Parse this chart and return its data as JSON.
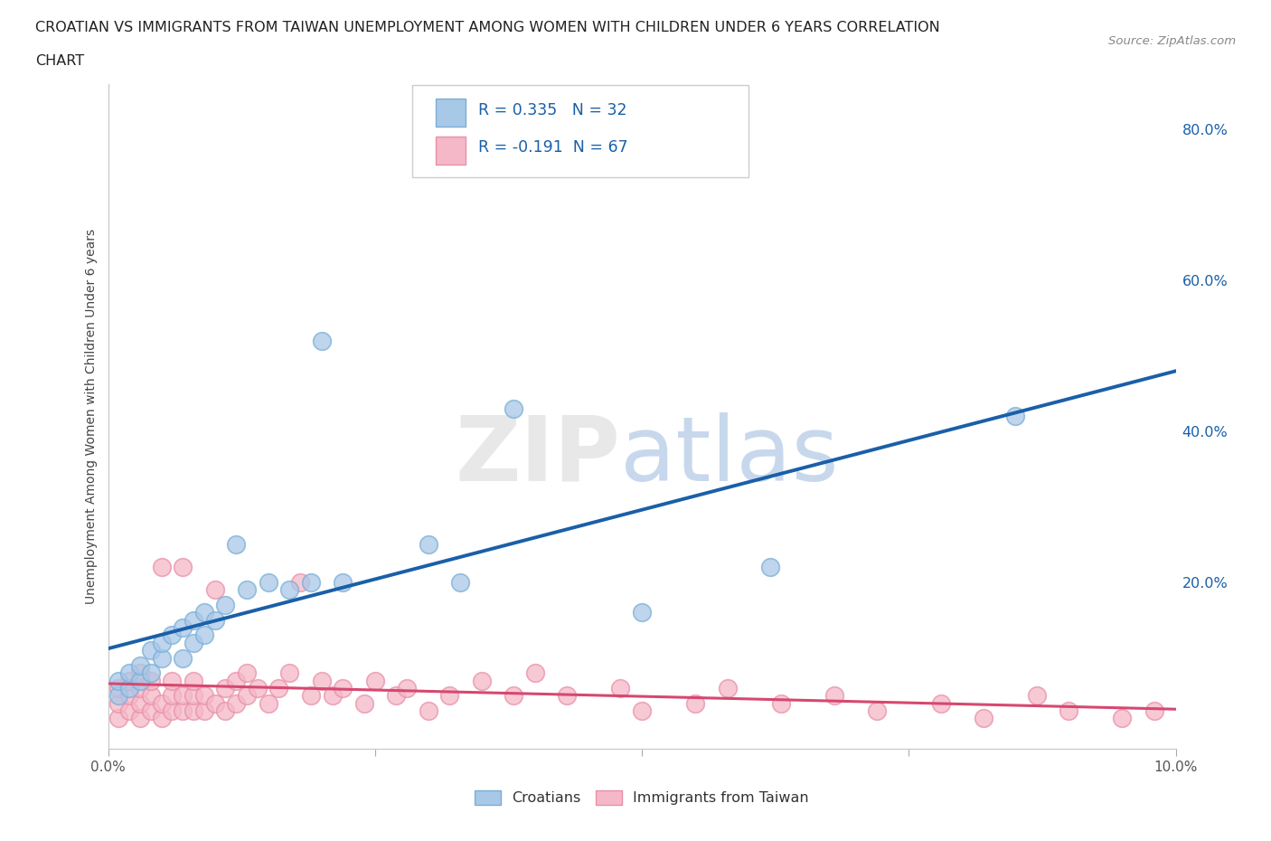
{
  "title_line1": "CROATIAN VS IMMIGRANTS FROM TAIWAN UNEMPLOYMENT AMONG WOMEN WITH CHILDREN UNDER 6 YEARS CORRELATION",
  "title_line2": "CHART",
  "source": "Source: ZipAtlas.com",
  "ylabel": "Unemployment Among Women with Children Under 6 years",
  "xlim": [
    0.0,
    0.1
  ],
  "ylim": [
    -0.02,
    0.86
  ],
  "yticks": [
    0.0,
    0.2,
    0.4,
    0.6,
    0.8
  ],
  "ytick_labels": [
    "",
    "20.0%",
    "40.0%",
    "60.0%",
    "80.0%"
  ],
  "xticks": [
    0.0,
    0.025,
    0.05,
    0.075,
    0.1
  ],
  "xtick_labels": [
    "0.0%",
    "",
    "",
    "",
    "10.0%"
  ],
  "croatian_R": 0.335,
  "croatian_N": 32,
  "taiwan_R": -0.191,
  "taiwan_N": 67,
  "croatian_color": "#a8c8e8",
  "croatian_edge_color": "#7aaed6",
  "croatian_line_color": "#1a5fa8",
  "taiwan_color": "#f5b8c8",
  "taiwan_edge_color": "#e890a8",
  "taiwan_line_color": "#d64870",
  "background_color": "#ffffff",
  "grid_color": "#d8d8d8",
  "croatian_x": [
    0.001,
    0.001,
    0.002,
    0.002,
    0.003,
    0.003,
    0.004,
    0.004,
    0.005,
    0.005,
    0.006,
    0.007,
    0.007,
    0.008,
    0.008,
    0.009,
    0.009,
    0.01,
    0.011,
    0.012,
    0.013,
    0.015,
    0.017,
    0.019,
    0.02,
    0.022,
    0.03,
    0.033,
    0.038,
    0.05,
    0.062,
    0.085
  ],
  "croatian_y": [
    0.05,
    0.07,
    0.06,
    0.08,
    0.07,
    0.09,
    0.08,
    0.11,
    0.1,
    0.12,
    0.13,
    0.1,
    0.14,
    0.12,
    0.15,
    0.13,
    0.16,
    0.15,
    0.17,
    0.25,
    0.19,
    0.2,
    0.19,
    0.2,
    0.52,
    0.2,
    0.25,
    0.2,
    0.43,
    0.16,
    0.22,
    0.42
  ],
  "taiwan_x": [
    0.001,
    0.001,
    0.001,
    0.002,
    0.002,
    0.002,
    0.003,
    0.003,
    0.003,
    0.003,
    0.004,
    0.004,
    0.004,
    0.005,
    0.005,
    0.005,
    0.006,
    0.006,
    0.006,
    0.007,
    0.007,
    0.007,
    0.008,
    0.008,
    0.008,
    0.009,
    0.009,
    0.01,
    0.01,
    0.011,
    0.011,
    0.012,
    0.012,
    0.013,
    0.013,
    0.014,
    0.015,
    0.016,
    0.017,
    0.018,
    0.019,
    0.02,
    0.021,
    0.022,
    0.024,
    0.025,
    0.027,
    0.028,
    0.03,
    0.032,
    0.035,
    0.038,
    0.04,
    0.043,
    0.048,
    0.05,
    0.055,
    0.058,
    0.063,
    0.068,
    0.072,
    0.078,
    0.082,
    0.087,
    0.09,
    0.095,
    0.098
  ],
  "taiwan_y": [
    0.02,
    0.04,
    0.06,
    0.03,
    0.05,
    0.07,
    0.02,
    0.04,
    0.06,
    0.08,
    0.03,
    0.05,
    0.07,
    0.02,
    0.04,
    0.22,
    0.03,
    0.05,
    0.07,
    0.03,
    0.05,
    0.22,
    0.03,
    0.05,
    0.07,
    0.03,
    0.05,
    0.04,
    0.19,
    0.03,
    0.06,
    0.04,
    0.07,
    0.05,
    0.08,
    0.06,
    0.04,
    0.06,
    0.08,
    0.2,
    0.05,
    0.07,
    0.05,
    0.06,
    0.04,
    0.07,
    0.05,
    0.06,
    0.03,
    0.05,
    0.07,
    0.05,
    0.08,
    0.05,
    0.06,
    0.03,
    0.04,
    0.06,
    0.04,
    0.05,
    0.03,
    0.04,
    0.02,
    0.05,
    0.03,
    0.02,
    0.03
  ]
}
